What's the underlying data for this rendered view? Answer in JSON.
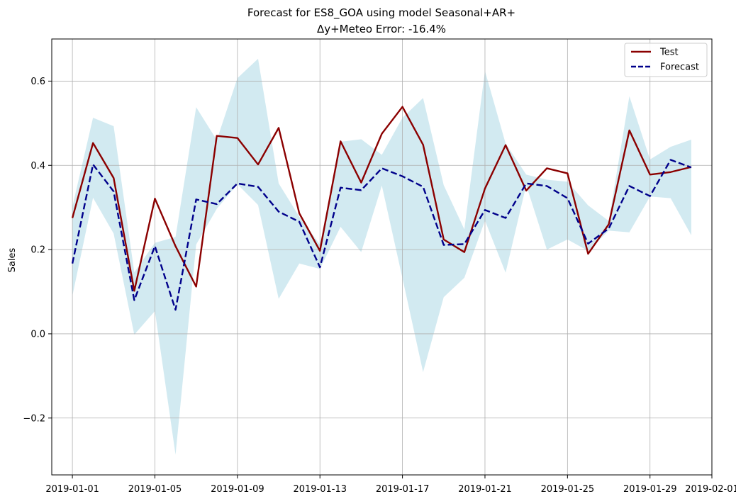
{
  "chart_data": {
    "type": "line",
    "title": "Forecast for ES8_GOA using model Seasonal+AR+",
    "subtitle": "Δy+Meteo Error: -16.4%",
    "xlabel": "",
    "ylabel": "Sales",
    "x": [
      "2019-01-01",
      "2019-01-02",
      "2019-01-03",
      "2019-01-04",
      "2019-01-05",
      "2019-01-06",
      "2019-01-07",
      "2019-01-08",
      "2019-01-09",
      "2019-01-10",
      "2019-01-11",
      "2019-01-12",
      "2019-01-13",
      "2019-01-14",
      "2019-01-15",
      "2019-01-16",
      "2019-01-17",
      "2019-01-18",
      "2019-01-19",
      "2019-01-20",
      "2019-01-21",
      "2019-01-22",
      "2019-01-23",
      "2019-01-24",
      "2019-01-25",
      "2019-01-26",
      "2019-01-27",
      "2019-01-28",
      "2019-01-29",
      "2019-01-30",
      "2019-01-31"
    ],
    "xlim": [
      "2018-12-31",
      "2019-02-01"
    ],
    "xticks": [
      "2019-01-01",
      "2019-01-05",
      "2019-01-09",
      "2019-01-13",
      "2019-01-17",
      "2019-01-21",
      "2019-01-25",
      "2019-01-29",
      "2019-02-01"
    ],
    "ylim": [
      -0.335,
      0.7
    ],
    "yticks": [
      -0.2,
      0.0,
      0.2,
      0.4,
      0.6
    ],
    "ytick_labels": [
      "−0.2",
      "0.0",
      "0.2",
      "0.4",
      "0.6"
    ],
    "grid": true,
    "legend_position": "top-right",
    "series": [
      {
        "name": "Test",
        "color": "#8b0000",
        "style": "solid",
        "values": [
          0.275,
          0.453,
          0.37,
          0.102,
          0.321,
          0.208,
          0.112,
          0.47,
          0.465,
          0.402,
          0.489,
          0.286,
          0.197,
          0.457,
          0.359,
          0.475,
          0.539,
          0.449,
          0.224,
          0.194,
          0.345,
          0.448,
          0.34,
          0.393,
          0.381,
          0.19,
          0.26,
          0.483,
          0.378,
          0.384,
          0.396
        ]
      },
      {
        "name": "Forecast",
        "color": "#00008b",
        "style": "dashed",
        "values": [
          0.167,
          0.402,
          0.338,
          0.08,
          0.208,
          0.057,
          0.319,
          0.308,
          0.357,
          0.349,
          0.29,
          0.266,
          0.158,
          0.347,
          0.341,
          0.393,
          0.374,
          0.349,
          0.211,
          0.213,
          0.294,
          0.275,
          0.357,
          0.351,
          0.322,
          0.214,
          0.25,
          0.351,
          0.327,
          0.413,
          0.395
        ]
      }
    ],
    "band": {
      "color": "#add8e6",
      "lower": [
        0.09,
        0.323,
        0.238,
        -0.002,
        0.054,
        -0.287,
        0.212,
        0.297,
        0.355,
        0.306,
        0.083,
        0.167,
        0.154,
        0.254,
        0.194,
        0.352,
        0.132,
        -0.091,
        0.087,
        0.133,
        0.269,
        0.145,
        0.353,
        0.2,
        0.224,
        0.197,
        0.245,
        0.241,
        0.326,
        0.322,
        0.234
      ],
      "upper": [
        0.302,
        0.513,
        0.493,
        0.146,
        0.216,
        0.23,
        0.538,
        0.46,
        0.607,
        0.653,
        0.357,
        0.278,
        0.212,
        0.456,
        0.462,
        0.425,
        0.513,
        0.56,
        0.353,
        0.248,
        0.624,
        0.452,
        0.378,
        0.366,
        0.361,
        0.305,
        0.268,
        0.564,
        0.414,
        0.444,
        0.461
      ]
    }
  }
}
